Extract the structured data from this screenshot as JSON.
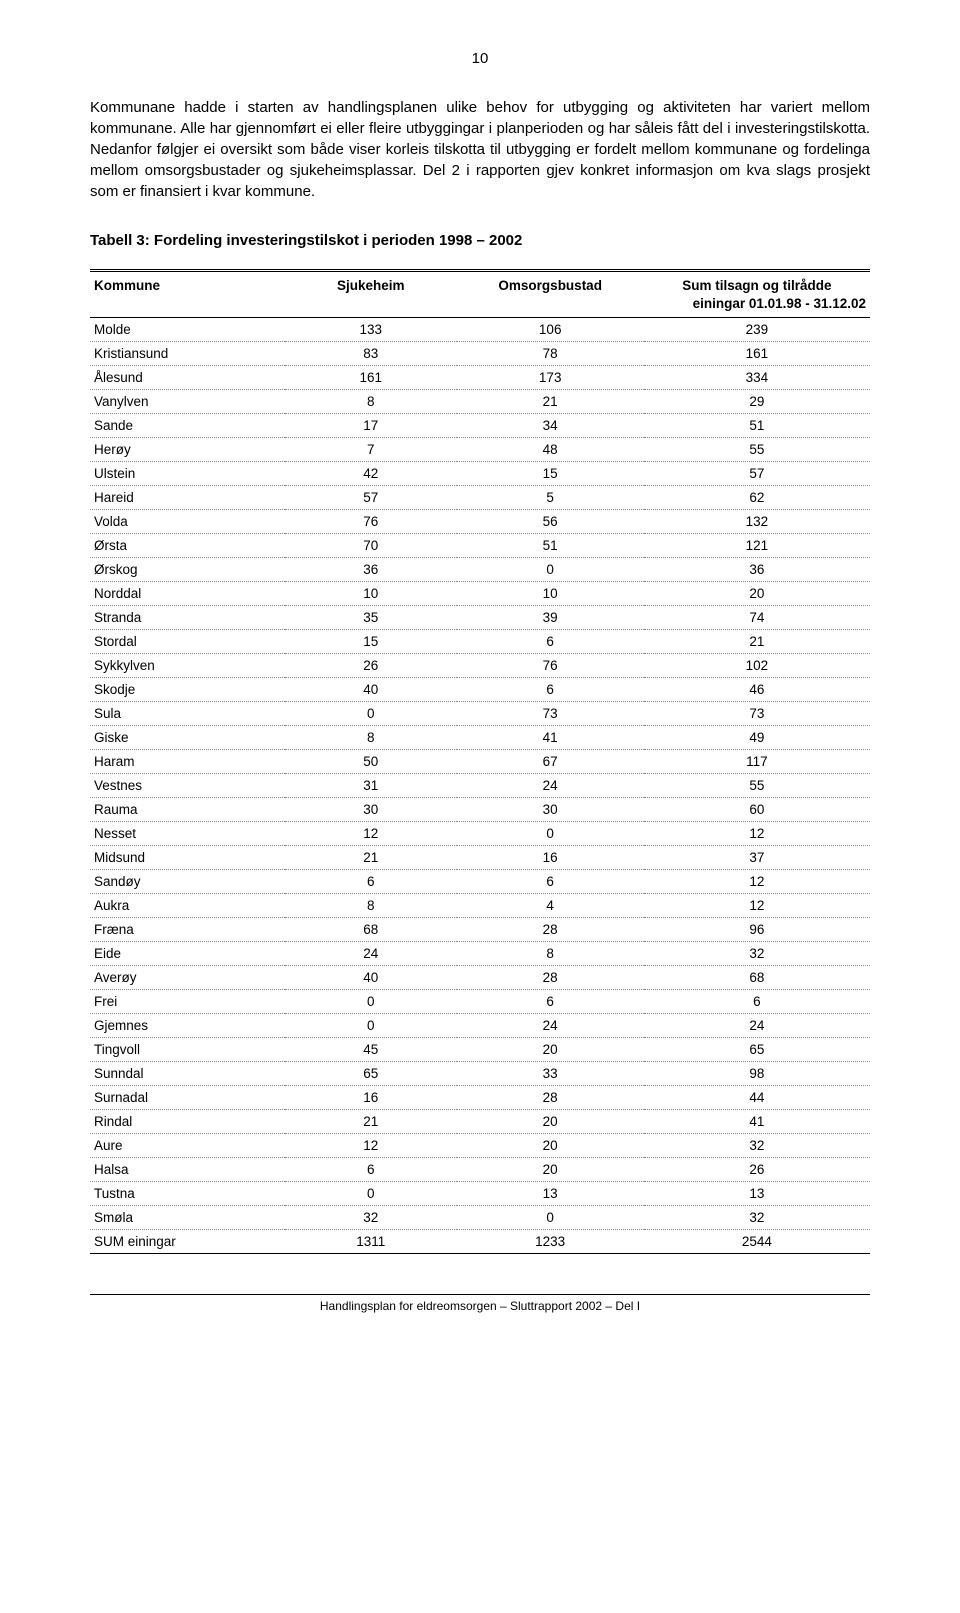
{
  "page_number": "10",
  "paragraph": "Kommunane hadde i starten av handlingsplanen ulike behov for utbygging og aktiviteten har variert mellom kommunane. Alle har gjennomført ei eller fleire utbyggingar i planperioden og har såleis fått del i investeringstilskotta. Nedanfor følgjer ei oversikt som både viser korleis tilskotta til utbygging er fordelt mellom kommunane og fordelinga mellom omsorgsbustader og sjukeheimsplassar. Del 2 i rapporten gjev konkret informasjon om kva slags prosjekt som er finansiert i kvar kommune.",
  "table_title": "Tabell 3: Fordeling investeringstilskot i perioden 1998 – 2002",
  "columns": {
    "c1": "Kommune",
    "c2": "Sjukeheim",
    "c3": "Omsorgsbustad",
    "c4": "Sum tilsagn og tilrådde",
    "c4_sub": "einingar 01.01.98 - 31.12.02"
  },
  "rows": [
    {
      "k": "Molde",
      "s": "133",
      "o": "106",
      "sum": "239"
    },
    {
      "k": "Kristiansund",
      "s": "83",
      "o": "78",
      "sum": "161"
    },
    {
      "k": "Ålesund",
      "s": "161",
      "o": "173",
      "sum": "334"
    },
    {
      "k": "Vanylven",
      "s": "8",
      "o": "21",
      "sum": "29"
    },
    {
      "k": "Sande",
      "s": "17",
      "o": "34",
      "sum": "51"
    },
    {
      "k": "Herøy",
      "s": "7",
      "o": "48",
      "sum": "55"
    },
    {
      "k": "Ulstein",
      "s": "42",
      "o": "15",
      "sum": "57"
    },
    {
      "k": "Hareid",
      "s": "57",
      "o": "5",
      "sum": "62"
    },
    {
      "k": "Volda",
      "s": "76",
      "o": "56",
      "sum": "132"
    },
    {
      "k": "Ørsta",
      "s": "70",
      "o": "51",
      "sum": "121"
    },
    {
      "k": "Ørskog",
      "s": "36",
      "o": "0",
      "sum": "36"
    },
    {
      "k": "Norddal",
      "s": "10",
      "o": "10",
      "sum": "20"
    },
    {
      "k": "Stranda",
      "s": "35",
      "o": "39",
      "sum": "74"
    },
    {
      "k": "Stordal",
      "s": "15",
      "o": "6",
      "sum": "21"
    },
    {
      "k": "Sykkylven",
      "s": "26",
      "o": "76",
      "sum": "102"
    },
    {
      "k": "Skodje",
      "s": "40",
      "o": "6",
      "sum": "46"
    },
    {
      "k": "Sula",
      "s": "0",
      "o": "73",
      "sum": "73"
    },
    {
      "k": "Giske",
      "s": "8",
      "o": "41",
      "sum": "49"
    },
    {
      "k": "Haram",
      "s": "50",
      "o": "67",
      "sum": "117"
    },
    {
      "k": "Vestnes",
      "s": "31",
      "o": "24",
      "sum": "55"
    },
    {
      "k": "Rauma",
      "s": "30",
      "o": "30",
      "sum": "60"
    },
    {
      "k": "Nesset",
      "s": "12",
      "o": "0",
      "sum": "12"
    },
    {
      "k": "Midsund",
      "s": "21",
      "o": "16",
      "sum": "37"
    },
    {
      "k": "Sandøy",
      "s": "6",
      "o": "6",
      "sum": "12"
    },
    {
      "k": "Aukra",
      "s": "8",
      "o": "4",
      "sum": "12"
    },
    {
      "k": "Fræna",
      "s": "68",
      "o": "28",
      "sum": "96"
    },
    {
      "k": "Eide",
      "s": "24",
      "o": "8",
      "sum": "32"
    },
    {
      "k": "Averøy",
      "s": "40",
      "o": "28",
      "sum": "68"
    },
    {
      "k": "Frei",
      "s": "0",
      "o": "6",
      "sum": "6"
    },
    {
      "k": "Gjemnes",
      "s": "0",
      "o": "24",
      "sum": "24"
    },
    {
      "k": "Tingvoll",
      "s": "45",
      "o": "20",
      "sum": "65"
    },
    {
      "k": "Sunndal",
      "s": "65",
      "o": "33",
      "sum": "98"
    },
    {
      "k": "Surnadal",
      "s": "16",
      "o": "28",
      "sum": "44"
    },
    {
      "k": "Rindal",
      "s": "21",
      "o": "20",
      "sum": "41"
    },
    {
      "k": "Aure",
      "s": "12",
      "o": "20",
      "sum": "32"
    },
    {
      "k": "Halsa",
      "s": "6",
      "o": "20",
      "sum": "26"
    },
    {
      "k": "Tustna",
      "s": "0",
      "o": "13",
      "sum": "13"
    },
    {
      "k": "Smøla",
      "s": "32",
      "o": "0",
      "sum": "32"
    }
  ],
  "sum_row": {
    "k": "SUM einingar",
    "s": "1311",
    "o": "1233",
    "sum": "2544"
  },
  "footer": "Handlingsplan for eldreomsorgen – Sluttrapport 2002 – Del  I"
}
